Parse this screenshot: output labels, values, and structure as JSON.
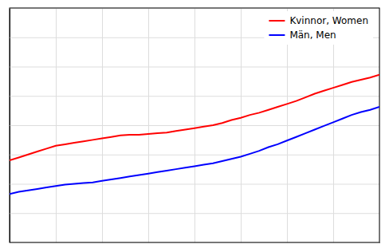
{
  "chart_data": {
    "type": "line",
    "x": [
      1971,
      1972,
      1973,
      1974,
      1975,
      1976,
      1977,
      1978,
      1979,
      1980,
      1981,
      1982,
      1983,
      1984,
      1985,
      1986,
      1987,
      1988,
      1989,
      1990,
      1991,
      1992,
      1993,
      1994,
      1995,
      1996,
      1997,
      1998,
      1999,
      2000,
      2001,
      2002,
      2003,
      2004,
      2005,
      2006,
      2007,
      2008,
      2009,
      2010,
      2011
    ],
    "series": [
      {
        "name": "Kvinnor, Women",
        "color": "#ff0000",
        "values": [
          15.6,
          15.8,
          16.0,
          16.2,
          16.4,
          16.6,
          16.7,
          16.8,
          16.9,
          17.0,
          17.1,
          17.2,
          17.3,
          17.35,
          17.35,
          17.4,
          17.45,
          17.5,
          17.6,
          17.7,
          17.8,
          17.9,
          18.0,
          18.15,
          18.35,
          18.5,
          18.7,
          18.85,
          19.05,
          19.25,
          19.45,
          19.65,
          19.9,
          20.15,
          20.35,
          20.55,
          20.75,
          20.95,
          21.1,
          21.25,
          21.45
        ]
      },
      {
        "name": "Män, Men",
        "color": "#0000ff",
        "values": [
          13.3,
          13.45,
          13.55,
          13.65,
          13.75,
          13.85,
          13.95,
          14.0,
          14.05,
          14.1,
          14.2,
          14.3,
          14.4,
          14.5,
          14.6,
          14.7,
          14.8,
          14.9,
          15.0,
          15.1,
          15.2,
          15.3,
          15.4,
          15.55,
          15.7,
          15.85,
          16.05,
          16.25,
          16.5,
          16.7,
          16.95,
          17.2,
          17.45,
          17.7,
          17.95,
          18.2,
          18.45,
          18.7,
          18.9,
          19.05,
          19.25
        ]
      }
    ],
    "xlim": [
      1971,
      2011
    ],
    "ylim": [
      10.0,
      26.0
    ],
    "xticks": [
      1971,
      1976,
      1981,
      1986,
      1991,
      1996,
      2001,
      2006,
      2011
    ],
    "yticks": [
      10,
      12,
      14,
      16,
      18,
      20,
      22,
      24,
      26
    ],
    "grid": true,
    "tick_labels": false,
    "legend": "upper right"
  }
}
